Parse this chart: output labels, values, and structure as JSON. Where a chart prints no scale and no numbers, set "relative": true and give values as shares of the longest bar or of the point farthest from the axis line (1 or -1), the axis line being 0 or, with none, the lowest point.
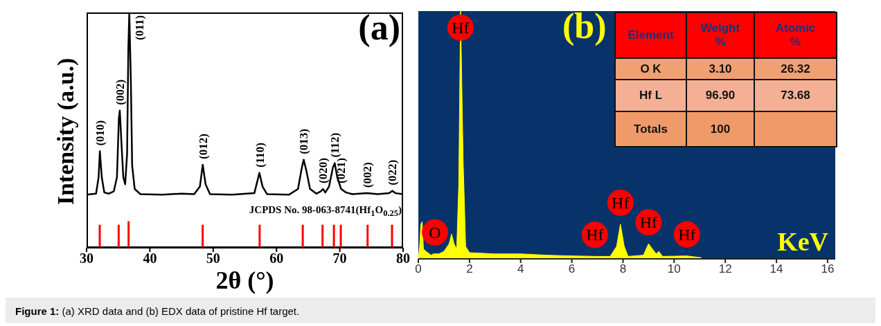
{
  "chart_data": [
    {
      "type": "line",
      "title": "(a)",
      "xlabel": "2θ (°)",
      "ylabel": "Intensity (a.u.)",
      "relative": true,
      "xlim": [
        30,
        80
      ],
      "xticks": [
        30,
        40,
        50,
        60,
        70,
        80
      ],
      "series": [
        {
          "type": "line",
          "color": "#000000",
          "x": [
            30,
            31.5,
            31.9,
            32.1,
            32.4,
            32.8,
            33.5,
            34.3,
            34.8,
            35.1,
            35.25,
            35.5,
            35.8,
            36.1,
            36.4,
            36.6,
            36.75,
            37.0,
            37.2,
            37.6,
            38.5,
            42,
            45,
            47,
            47.9,
            48.35,
            48.8,
            49.5,
            53,
            56.5,
            57.3,
            57.8,
            58.5,
            62,
            63.4,
            64.0,
            64.3,
            64.7,
            65.3,
            66.3,
            67.0,
            67.35,
            67.7,
            68.3,
            68.9,
            69.2,
            69.6,
            70.2,
            71,
            72,
            74.3,
            76,
            77.8,
            78.3,
            78.8,
            80
          ],
          "values": [
            0.226,
            0.23,
            0.3,
            0.41,
            0.3,
            0.235,
            0.23,
            0.24,
            0.3,
            0.55,
            0.583,
            0.45,
            0.3,
            0.27,
            0.4,
            0.85,
            1.0,
            0.7,
            0.35,
            0.25,
            0.228,
            0.226,
            0.23,
            0.228,
            0.26,
            0.353,
            0.27,
            0.228,
            0.226,
            0.232,
            0.318,
            0.26,
            0.228,
            0.226,
            0.25,
            0.34,
            0.374,
            0.33,
            0.25,
            0.23,
            0.24,
            0.25,
            0.235,
            0.26,
            0.34,
            0.36,
            0.3,
            0.25,
            0.235,
            0.228,
            0.232,
            0.228,
            0.232,
            0.242,
            0.232,
            0.228
          ]
        },
        {
          "type": "bar",
          "color": "#ff0000",
          "x": [
            32.08,
            35.07,
            36.64,
            48.34,
            57.34,
            64.15,
            67.28,
            69.07,
            70.16,
            74.39,
            78.25
          ],
          "values": [
            0.098,
            0.098,
            0.113,
            0.098,
            0.098,
            0.098,
            0.098,
            0.098,
            0.098,
            0.098,
            0.098
          ]
        }
      ],
      "annotations": [
        "JCPDS No. 98-063-8741(Hf$_{1}$O$_{0.25}$)",
        "Figure 1: (a) XRD data and (b) EDX data of pristine Hf target.",
        {
          "text": "(010)",
          "x": 32.1,
          "y": 0.41
        },
        {
          "text": "(002)",
          "x": 35.25,
          "y": 0.583
        },
        {
          "text": "(011)",
          "x": 36.75,
          "y": 1.0
        },
        {
          "text": "(012)",
          "x": 48.35,
          "y": 0.353
        },
        {
          "text": "(110)",
          "x": 57.3,
          "y": 0.318
        },
        {
          "text": "(013)",
          "x": 64.3,
          "y": 0.374
        },
        {
          "text": "(020)",
          "x": 67.35,
          "y": 0.25
        },
        {
          "text": "(112)",
          "x": 69.2,
          "y": 0.36
        },
        {
          "text": "(021)",
          "x": 70.2,
          "y": 0.25
        },
        {
          "text": "(002)",
          "x": 74.3,
          "y": 0.232
        },
        {
          "text": "(022)",
          "x": 78.3,
          "y": 0.242
        }
      ]
    },
    {
      "type": "area",
      "title": "(b)",
      "xlabel": "KeV",
      "relative": true,
      "xlim": [
        0,
        16.3
      ],
      "xticks": [
        0,
        2,
        4,
        6,
        8,
        10,
        12,
        14,
        16
      ],
      "series": [
        {
          "color": "#ffff00",
          "x": [
            0,
            0.05,
            0.1,
            0.15,
            0.2,
            0.3,
            0.5,
            0.6,
            0.8,
            1.0,
            1.2,
            1.3,
            1.4,
            1.5,
            1.58,
            1.65,
            1.75,
            1.85,
            2.0,
            3,
            4,
            5,
            6,
            7,
            7.5,
            7.75,
            7.9,
            8.05,
            8.2,
            8.8,
            9.0,
            9.15,
            9.3,
            9.4,
            9.55,
            10.5,
            11.05,
            11.1
          ],
          "values": [
            0,
            0.05,
            0.14,
            0.15,
            0.04,
            0.03,
            0.015,
            0.02,
            0.02,
            0.03,
            0.06,
            0.1,
            0.06,
            0.04,
            0.3,
            1.0,
            0.4,
            0.05,
            0.025,
            0.02,
            0.02,
            0.015,
            0.012,
            0.01,
            0.01,
            0.05,
            0.14,
            0.05,
            0.01,
            0.015,
            0.061,
            0.04,
            0.02,
            0.03,
            0.01,
            0.012,
            0.005,
            0
          ]
        }
      ],
      "annotations": [
        {
          "text": "O",
          "x": 0.65,
          "y": 0.02
        },
        {
          "text": "Hf",
          "x": 1.65,
          "y": 1.0
        },
        {
          "text": "Hf",
          "x": 6.9,
          "y": 0.01
        },
        {
          "text": "Hf",
          "x": 7.9,
          "y": 0.14
        },
        {
          "text": "Hf",
          "x": 9.0,
          "y": 0.061
        },
        {
          "text": "Hf",
          "x": 10.5,
          "y": 0.012
        }
      ]
    },
    {
      "type": "other",
      "xlabel": "Element",
      "categories": [
        "O K",
        "Hf L",
        "Totals"
      ],
      "series": [
        {
          "name": "Weight %",
          "values": [
            3.1,
            96.9,
            100
          ],
          "value_labels": [
            "3.10",
            "96.90",
            "100"
          ],
          "colors": [
            "#f1a073",
            "#f4b094",
            "#f19a69"
          ]
        },
        {
          "name": "Atomic %",
          "values": [
            26.32,
            73.68,
            null
          ],
          "value_labels": [
            "26.32",
            "73.68",
            null
          ],
          "colors": [
            "#f1a073",
            "#f4b094",
            "#f19a69"
          ]
        }
      ]
    }
  ]
}
